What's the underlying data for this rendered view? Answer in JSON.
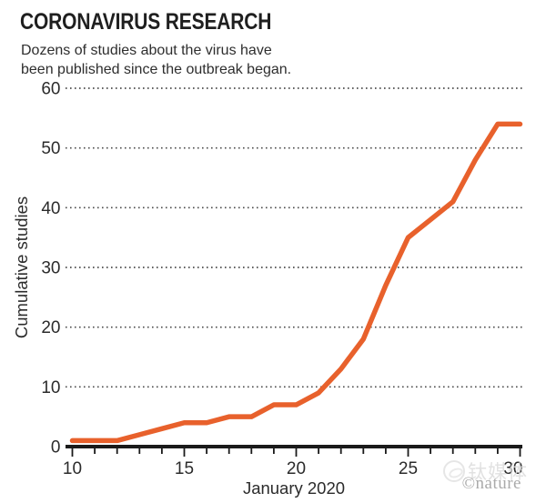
{
  "header": {
    "title": "CORONAVIRUS RESEARCH",
    "subtitle_lines": [
      "Dozens of studies about the virus have",
      "been published since the outbreak began."
    ]
  },
  "chart_data": {
    "type": "line",
    "title": "CORONAVIRUS RESEARCH",
    "subtitle": "Dozens of studies about the virus have been published since the outbreak began.",
    "xlabel": "January 2020",
    "ylabel": "Cumulative studies",
    "xlim": [
      10,
      30
    ],
    "ylim": [
      0,
      60
    ],
    "x": [
      10,
      11,
      12,
      13,
      14,
      15,
      16,
      17,
      18,
      19,
      20,
      21,
      22,
      23,
      24,
      25,
      26,
      27,
      28,
      29,
      30
    ],
    "values": [
      1,
      1,
      1,
      2,
      3,
      4,
      4,
      5,
      5,
      7,
      7,
      9,
      13,
      18,
      27,
      35,
      38,
      41,
      48,
      54,
      54
    ],
    "series_name": "Cumulative studies",
    "yticks": [
      0,
      10,
      20,
      30,
      40,
      50,
      60
    ],
    "xtick_labels": [
      10,
      15,
      20,
      25,
      30
    ],
    "grid": "horizontal dotted",
    "legend": "none",
    "line_color": "#E8612C",
    "axis_color": "#1a1a1a",
    "gridline_color": "#4d4d4d"
  },
  "watermark": {
    "credit": "©nature",
    "overlay_text": "钛媒体"
  }
}
